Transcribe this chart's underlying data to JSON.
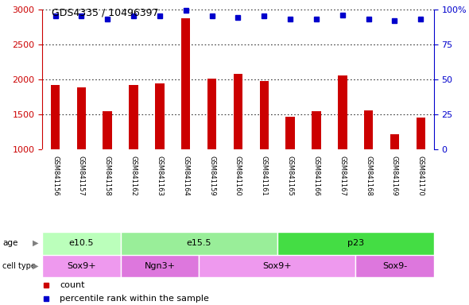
{
  "title": "GDS4335 / 10496397",
  "samples": [
    "GSM841156",
    "GSM841157",
    "GSM841158",
    "GSM841162",
    "GSM841163",
    "GSM841164",
    "GSM841159",
    "GSM841160",
    "GSM841161",
    "GSM841165",
    "GSM841166",
    "GSM841167",
    "GSM841168",
    "GSM841169",
    "GSM841170"
  ],
  "counts": [
    1920,
    1880,
    1540,
    1920,
    1940,
    2870,
    2010,
    2080,
    1980,
    1470,
    1550,
    2060,
    1560,
    1220,
    1460
  ],
  "percentile": [
    95,
    95,
    93,
    95,
    95,
    99,
    95,
    94,
    95,
    93,
    93,
    96,
    93,
    92,
    93
  ],
  "bar_color": "#cc0000",
  "dot_color": "#0000cc",
  "ylim_left": [
    1000,
    3000
  ],
  "ylim_right": [
    0,
    100
  ],
  "yticks_left": [
    1000,
    1500,
    2000,
    2500,
    3000
  ],
  "yticks_right": [
    0,
    25,
    50,
    75,
    100
  ],
  "age_groups": [
    {
      "label": "e10.5",
      "start": 0,
      "end": 3,
      "color": "#bbffbb"
    },
    {
      "label": "e15.5",
      "start": 3,
      "end": 9,
      "color": "#99ee99"
    },
    {
      "label": "p23",
      "start": 9,
      "end": 15,
      "color": "#44dd44"
    }
  ],
  "cell_type_groups": [
    {
      "label": "Sox9+",
      "start": 0,
      "end": 3,
      "color": "#ee99ee"
    },
    {
      "label": "Ngn3+",
      "start": 3,
      "end": 6,
      "color": "#dd77dd"
    },
    {
      "label": "Sox9+",
      "start": 6,
      "end": 12,
      "color": "#ee99ee"
    },
    {
      "label": "Sox9-",
      "start": 12,
      "end": 15,
      "color": "#dd77dd"
    }
  ],
  "legend_count_color": "#cc0000",
  "legend_dot_color": "#0000cc",
  "tick_area_bg": "#cccccc",
  "left_axis_color": "#cc0000",
  "right_axis_color": "#0000cc",
  "fig_width": 5.9,
  "fig_height": 3.84,
  "dpi": 100
}
